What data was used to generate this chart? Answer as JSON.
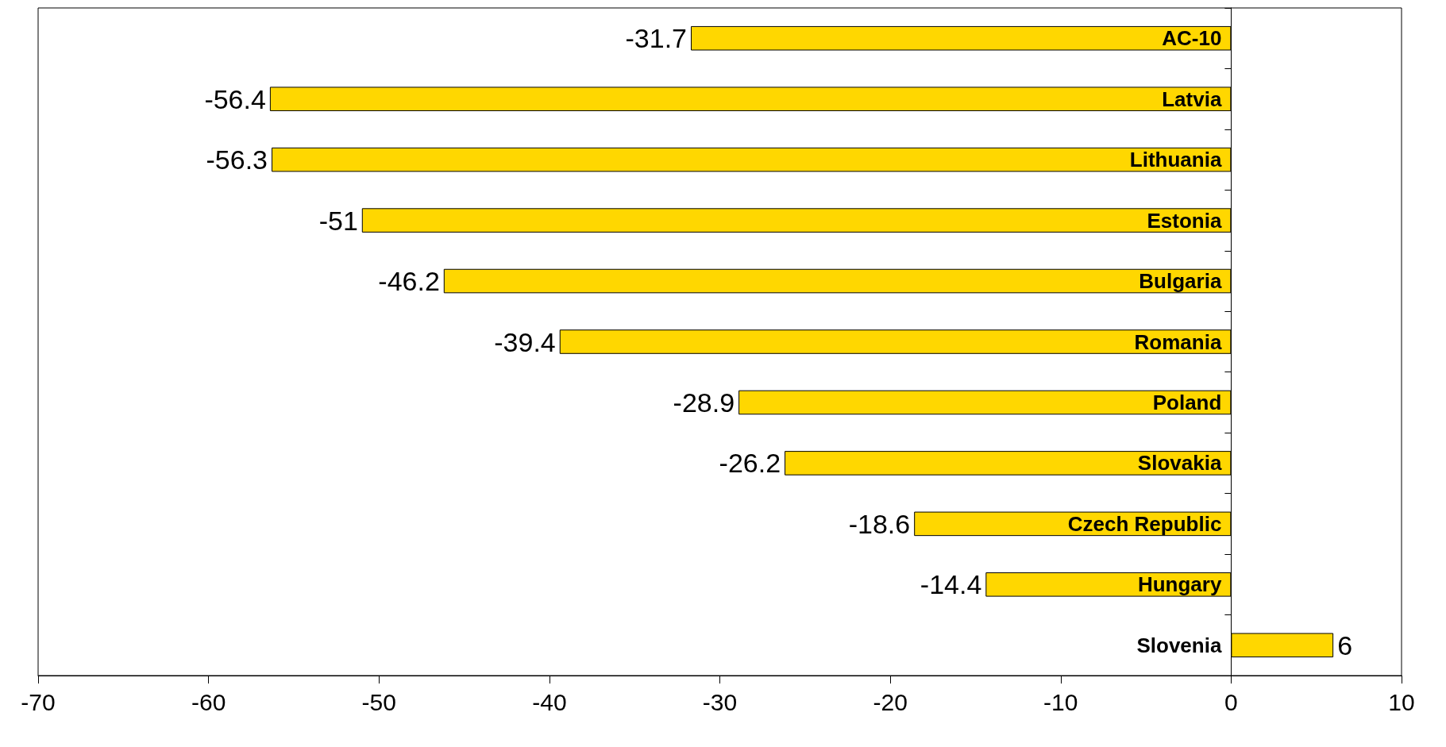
{
  "chart_data": {
    "type": "bar",
    "orientation": "horizontal",
    "categories": [
      "AC-10",
      "Latvia",
      "Lithuania",
      "Estonia",
      "Bulgaria",
      "Romania",
      "Poland",
      "Slovakia",
      "Czech Republic",
      "Hungary",
      "Slovenia"
    ],
    "values": [
      -31.7,
      -56.4,
      -56.3,
      -51,
      -46.2,
      -39.4,
      -28.9,
      -26.2,
      -18.6,
      -14.4,
      6
    ],
    "color": "#ffd700",
    "xlim": [
      -70,
      10
    ],
    "xticks": [
      -70,
      -60,
      -50,
      -40,
      -30,
      -20,
      -10,
      0,
      10
    ],
    "data_labels": true
  }
}
